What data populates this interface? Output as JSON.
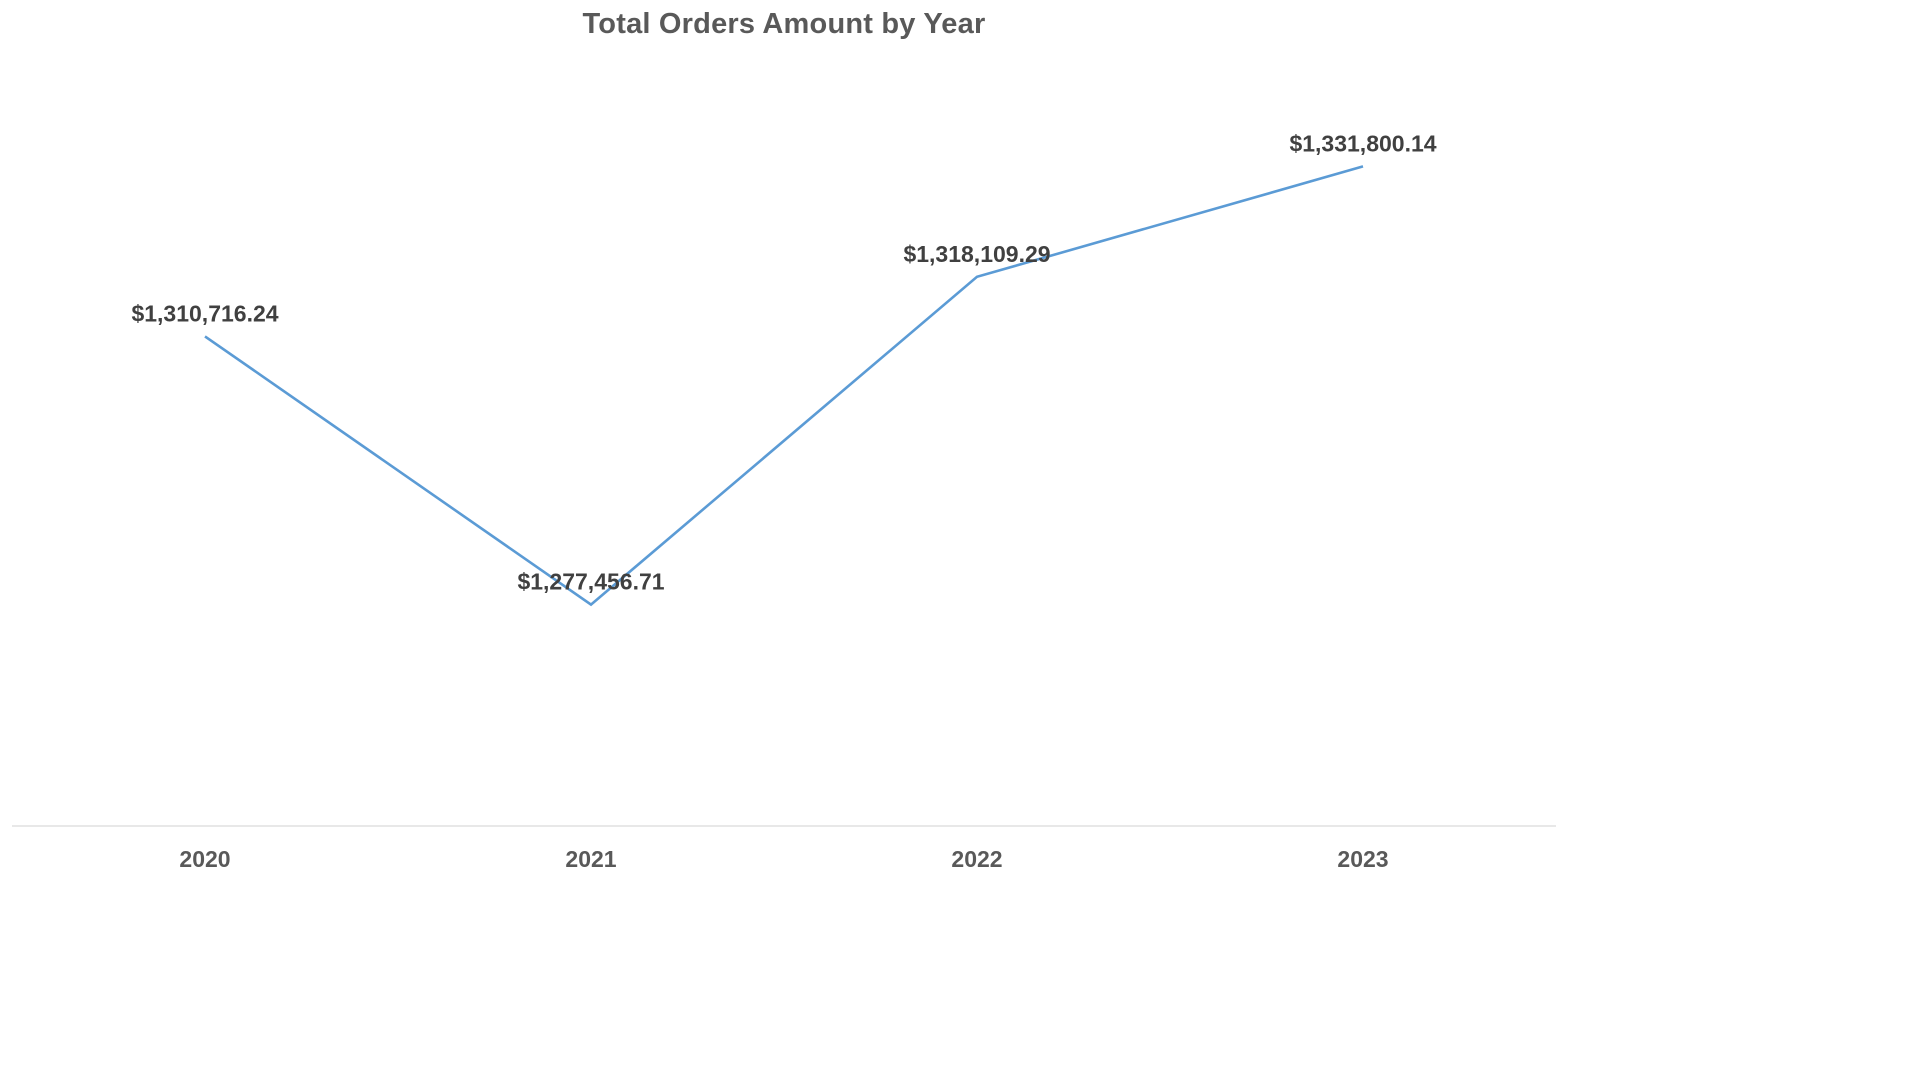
{
  "chart_data": {
    "type": "line",
    "title": "Total Orders Amount by Year",
    "xlabel": "",
    "ylabel": "",
    "categories": [
      "2020",
      "2021",
      "2022",
      "2023"
    ],
    "series": [
      {
        "values": [
          1310716.24,
          1277456.71,
          1318109.29,
          1331800.14
        ],
        "color": "#5B9BD5"
      }
    ],
    "data_labels": [
      "$1,310,716.24",
      "$1,277,456.71",
      "$1,318,109.29",
      "$1,331,800.14"
    ],
    "ylim": [
      1250000,
      1345000
    ],
    "grid": false,
    "legend": "none",
    "value_axis_visible": false
  },
  "colors": {
    "line": "#5B9BD5",
    "axis": "#D9D9D9",
    "title": "#595959",
    "labels": "#404040"
  }
}
